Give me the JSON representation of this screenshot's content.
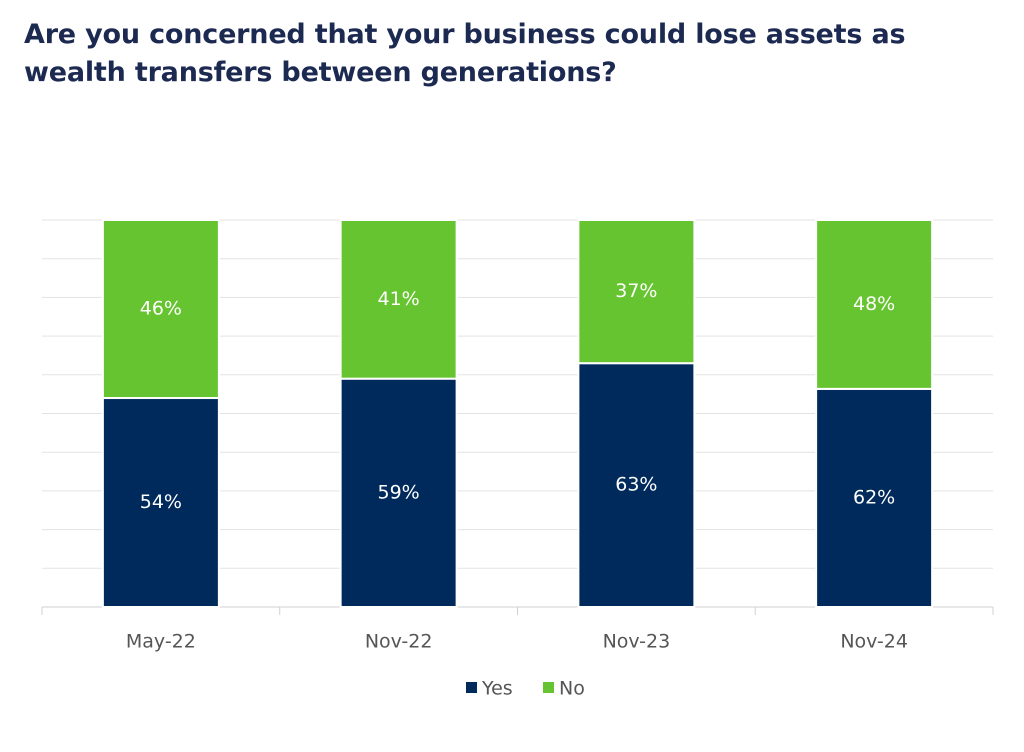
{
  "chart_data": {
    "type": "bar",
    "stacked": "percent",
    "title": "Are you concerned that your business could lose assets as wealth transfers between generations?",
    "categories": [
      "May-22",
      "Nov-22",
      "Nov-23",
      "Nov-24"
    ],
    "series": [
      {
        "name": "Yes",
        "color": "#002a5c",
        "values": [
          54,
          59,
          63,
          62
        ],
        "value_labels": [
          "54%",
          "59%",
          "63%",
          "62%"
        ]
      },
      {
        "name": "No",
        "color": "#66c430",
        "values": [
          46,
          41,
          37,
          48
        ],
        "value_labels": [
          "46%",
          "41%",
          "37%",
          "48%"
        ]
      }
    ],
    "grid": true,
    "legend": "bottom"
  }
}
